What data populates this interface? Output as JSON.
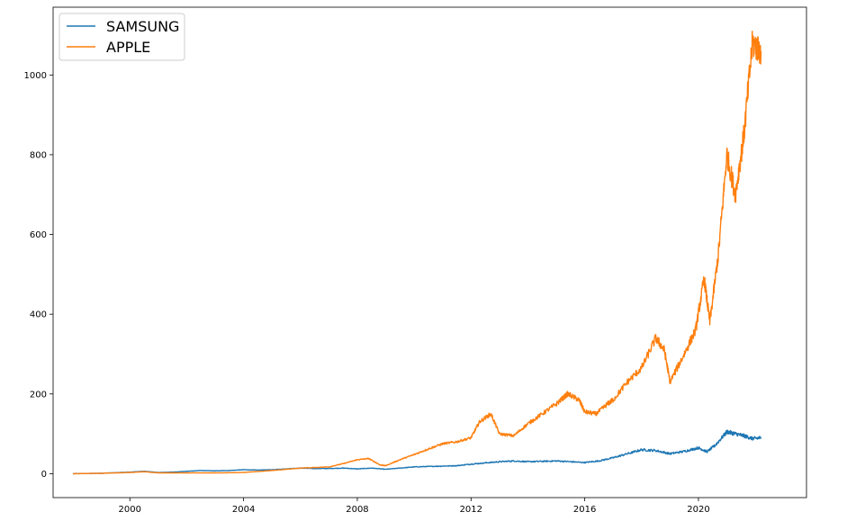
{
  "chart_data": {
    "type": "line",
    "title": "",
    "xlabel": "",
    "ylabel": "",
    "xlim": [
      1997.3,
      2023.8
    ],
    "ylim": [
      -60,
      1170
    ],
    "x_ticks": [
      2000,
      2004,
      2008,
      2012,
      2016,
      2020
    ],
    "x_tick_labels": [
      "2000",
      "2004",
      "2008",
      "2012",
      "2016",
      "2020"
    ],
    "y_ticks": [
      0,
      200,
      400,
      600,
      800,
      1000
    ],
    "y_tick_labels": [
      "0",
      "200",
      "400",
      "600",
      "800",
      "1000"
    ],
    "grid": false,
    "legend_position": "top-left",
    "series": [
      {
        "name": "SAMSUNG",
        "color": "#1f77b4",
        "x": [
          1998.0,
          1999.0,
          2000.0,
          2000.5,
          2001.0,
          2001.5,
          2002.0,
          2002.5,
          2003.0,
          2003.5,
          2004.0,
          2004.5,
          2005.0,
          2005.5,
          2006.0,
          2006.5,
          2007.0,
          2007.5,
          2008.0,
          2008.5,
          2009.0,
          2009.5,
          2010.0,
          2010.5,
          2011.0,
          2011.5,
          2012.0,
          2012.5,
          2013.0,
          2013.5,
          2014.0,
          2014.5,
          2015.0,
          2015.5,
          2016.0,
          2016.5,
          2017.0,
          2017.5,
          2018.0,
          2018.5,
          2019.0,
          2019.5,
          2020.0,
          2020.3,
          2020.6,
          2021.0,
          2021.3,
          2021.6,
          2021.9,
          2022.2
        ],
        "y": [
          0,
          1,
          4,
          6,
          3,
          4,
          6,
          8,
          7,
          8,
          10,
          9,
          10,
          12,
          14,
          13,
          13,
          14,
          12,
          14,
          11,
          14,
          17,
          18,
          19,
          20,
          24,
          27,
          30,
          32,
          30,
          31,
          32,
          30,
          28,
          32,
          40,
          50,
          60,
          58,
          50,
          56,
          65,
          55,
          72,
          105,
          100,
          95,
          88,
          90
        ]
      },
      {
        "name": "APPLE",
        "color": "#ff7f0e",
        "x": [
          1998.0,
          1999.0,
          2000.0,
          2000.5,
          2001.0,
          2002.0,
          2003.0,
          2004.0,
          2005.0,
          2006.0,
          2007.0,
          2007.5,
          2008.0,
          2008.4,
          2008.8,
          2009.0,
          2009.5,
          2010.0,
          2010.5,
          2011.0,
          2011.5,
          2012.0,
          2012.3,
          2012.7,
          2013.0,
          2013.5,
          2014.0,
          2014.5,
          2015.0,
          2015.4,
          2015.8,
          2016.0,
          2016.4,
          2016.8,
          2017.0,
          2017.5,
          2018.0,
          2018.5,
          2018.8,
          2019.0,
          2019.5,
          2019.9,
          2020.2,
          2020.4,
          2020.7,
          2021.0,
          2021.3,
          2021.6,
          2021.9,
          2022.2
        ],
        "y": [
          0,
          1,
          3,
          5,
          2,
          2,
          2,
          3,
          8,
          14,
          17,
          25,
          35,
          38,
          22,
          20,
          35,
          48,
          62,
          75,
          80,
          90,
          130,
          150,
          100,
          95,
          125,
          150,
          175,
          200,
          185,
          155,
          150,
          175,
          185,
          230,
          265,
          340,
          310,
          230,
          300,
          360,
          490,
          380,
          550,
          800,
          700,
          850,
          1080,
          1060
        ]
      }
    ]
  }
}
